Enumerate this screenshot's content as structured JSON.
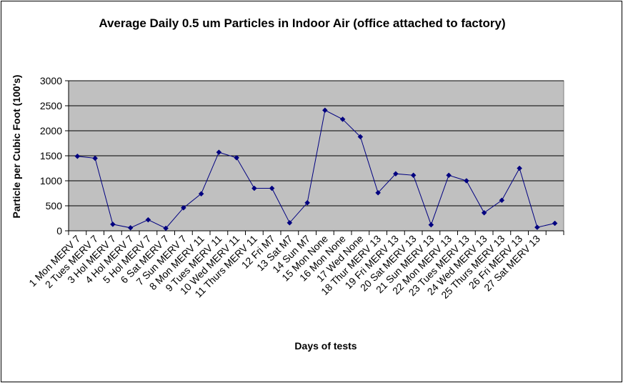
{
  "chart_data": {
    "type": "line",
    "title": "Average Daily 0.5 um Particles in Indoor Air (office attached to factory)",
    "xlabel": "Days of tests",
    "ylabel": "Particle per Cubic Foot (100's)",
    "ylim": [
      0,
      3000
    ],
    "yticks": [
      0,
      500,
      1000,
      1500,
      2000,
      2500,
      3000
    ],
    "grid": true,
    "legend": "none",
    "colors": {
      "plot_bg": "#c0c0c0",
      "line": "#000080",
      "marker": "#000080",
      "grid": "#000000"
    },
    "categories": [
      "1 Mon MERV 7",
      "2 Tues MERV 7",
      "3 Hol MERV 7",
      "4 Hol MERV 7",
      "5 Hol MERV 7",
      "6 Sat MERV 7",
      "7 Sun MERV 7",
      "8 Mon MERV 11",
      "9 Tues MERV 11",
      "10 Wed MERV 11",
      "11 Thurs MERV 11",
      "12 Fri M7",
      "13 Sat M7",
      "14 Sun M7",
      "15 Mon None",
      "16 Mon None",
      "17 Wed None",
      "18 Thur MERV 13",
      "19 Fri MERV 13",
      "20 Sat MERV 13",
      "21 Sun MERV 13",
      "22 Mon MERV 13",
      "23 Tues MERV 13",
      "24 Wed MERV 13",
      "25 Thurs MERV 13",
      "26 Fri MERV 13",
      "27 Sat MERV 13",
      ""
    ],
    "series": [
      {
        "values": [
          1490,
          1450,
          130,
          60,
          220,
          50,
          460,
          740,
          1570,
          1460,
          850,
          850,
          160,
          560,
          2410,
          2230,
          1880,
          760,
          1140,
          1110,
          120,
          1110,
          1000,
          360,
          610,
          1250,
          70,
          150
        ]
      }
    ]
  }
}
